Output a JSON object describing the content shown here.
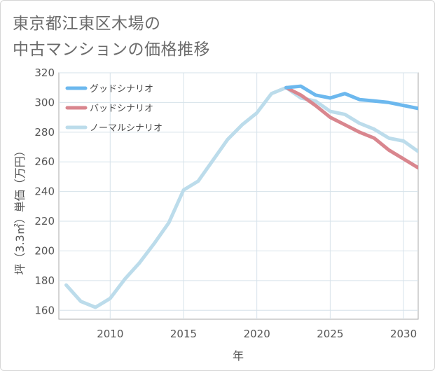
{
  "title": {
    "line1": "東京都江東区木場の",
    "line2": "中古マンションの価格推移"
  },
  "chart_data": {
    "type": "line",
    "xlabel": "年",
    "ylabel": "坪（3.3㎡）単価（万円）",
    "xlim": [
      2006.5,
      2031
    ],
    "ylim": [
      154,
      320
    ],
    "xticks": [
      2010,
      2015,
      2020,
      2025,
      2030
    ],
    "yticks": [
      160,
      180,
      200,
      220,
      240,
      260,
      280,
      300,
      320
    ],
    "grid": true,
    "legend_position": "top-left",
    "series": [
      {
        "name": "グッドシナリオ",
        "color": "#6cb8ee",
        "x": [
          2022,
          2023,
          2024,
          2025,
          2026,
          2027,
          2028,
          2029,
          2030,
          2031
        ],
        "y": [
          310,
          311,
          305,
          303,
          306,
          302,
          301,
          300,
          298,
          296
        ]
      },
      {
        "name": "バッドシナリオ",
        "color": "#d9868e",
        "x": [
          2022,
          2023,
          2024,
          2025,
          2026,
          2027,
          2028,
          2029,
          2030,
          2031
        ],
        "y": [
          310,
          305,
          298,
          290,
          285,
          280,
          276,
          268,
          262,
          256
        ]
      },
      {
        "name": "ノーマルシナリオ",
        "color": "#bcdceb",
        "x": [
          2007,
          2008,
          2009,
          2010,
          2011,
          2012,
          2013,
          2014,
          2015,
          2016,
          2017,
          2018,
          2019,
          2020,
          2021,
          2022,
          2023,
          2024,
          2025,
          2026,
          2027,
          2028,
          2029,
          2030,
          2031
        ],
        "y": [
          177,
          166,
          162,
          168,
          181,
          192,
          205,
          219,
          241,
          247,
          261,
          275,
          285,
          293,
          306,
          310,
          303,
          301,
          294,
          292,
          286,
          282,
          276,
          274,
          267
        ]
      }
    ]
  }
}
